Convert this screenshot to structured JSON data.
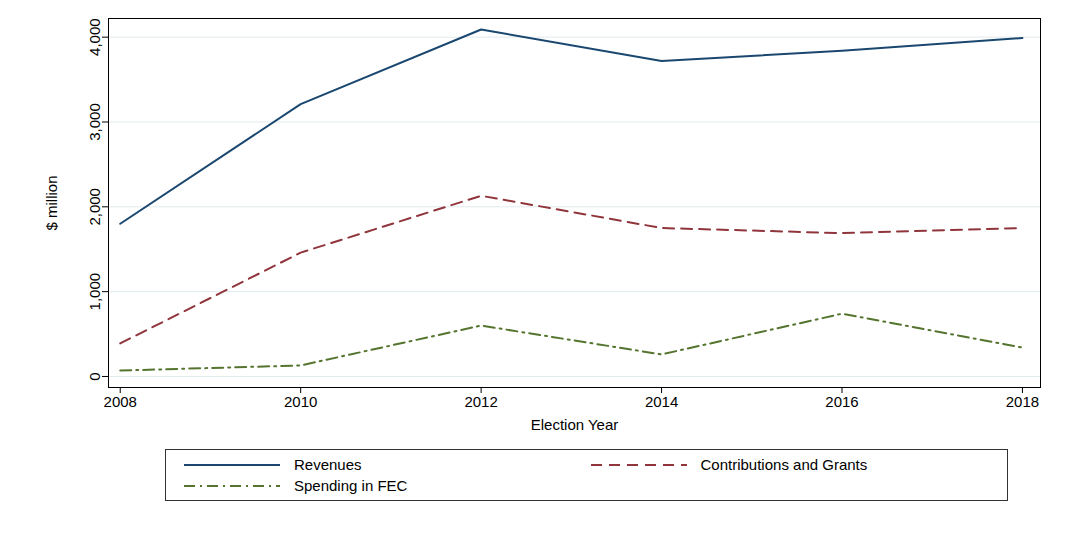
{
  "chart_data": {
    "type": "line",
    "x_label": "Election Year",
    "y_label": "$ million",
    "x": [
      2008,
      2010,
      2012,
      2014,
      2016,
      2018
    ],
    "series": [
      {
        "name": "Revenues",
        "color": "#1a476f",
        "line_style": "solid",
        "values": [
          1800,
          3210,
          4090,
          3720,
          3840,
          3990
        ]
      },
      {
        "name": "Contributions and Grants",
        "color": "#90353b",
        "line_style": "dashed",
        "values": [
          390,
          1460,
          2130,
          1750,
          1690,
          1750
        ]
      },
      {
        "name": "Spending in FEC",
        "color": "#55752f",
        "line_style": "dashdot",
        "values": [
          70,
          130,
          600,
          260,
          740,
          340
        ]
      }
    ],
    "xlim": [
      2007.87,
      2018.2
    ],
    "xticks": [
      2008,
      2010,
      2012,
      2014,
      2016,
      2018
    ],
    "ylim": [
      -130,
      4220
    ],
    "yticks": [
      0,
      {
        "value": 1000,
        "label": "1,000"
      },
      {
        "value": 2000,
        "label": "2,000"
      },
      {
        "value": 3000,
        "label": "3,000"
      },
      {
        "value": 4000,
        "label": "4,000"
      }
    ],
    "grid": true,
    "legend": "bottom"
  }
}
